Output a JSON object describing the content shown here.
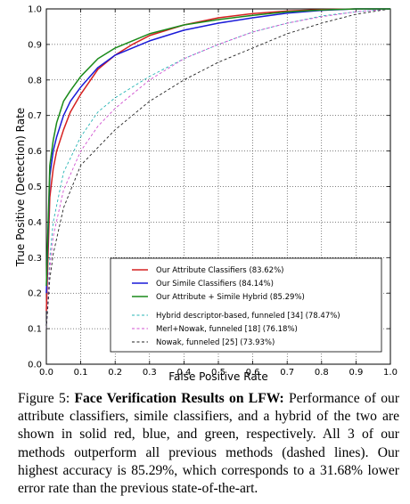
{
  "chart_data": {
    "type": "line",
    "xlabel": "False Positive Rate",
    "ylabel": "True Positive (Detection) Rate",
    "xlim": [
      0.0,
      1.0
    ],
    "ylim": [
      0.0,
      1.0
    ],
    "x_ticks": [
      "0.0",
      "0.1",
      "0.2",
      "0.3",
      "0.4",
      "0.5",
      "0.6",
      "0.7",
      "0.8",
      "0.9",
      "1.0"
    ],
    "y_ticks": [
      "0.0",
      "0.1",
      "0.2",
      "0.3",
      "0.4",
      "0.5",
      "0.6",
      "0.7",
      "0.8",
      "0.9",
      "1.0"
    ],
    "grid": true,
    "legend_position": "lower-right",
    "series": [
      {
        "name": "Our Attribute Classifiers (83.62%)",
        "color": "#d62020",
        "dash": "solid",
        "x": [
          0,
          0.01,
          0.02,
          0.03,
          0.05,
          0.07,
          0.1,
          0.15,
          0.2,
          0.25,
          0.3,
          0.4,
          0.5,
          0.6,
          0.7,
          0.8,
          0.9,
          1.0
        ],
        "y": [
          0.15,
          0.47,
          0.55,
          0.6,
          0.66,
          0.71,
          0.76,
          0.83,
          0.87,
          0.9,
          0.925,
          0.955,
          0.975,
          0.987,
          0.994,
          0.998,
          1.0,
          1.0
        ]
      },
      {
        "name": "Our Simile Classifiers (84.14%)",
        "color": "#1a1ad8",
        "dash": "solid",
        "x": [
          0,
          0.01,
          0.02,
          0.03,
          0.05,
          0.07,
          0.1,
          0.15,
          0.2,
          0.25,
          0.3,
          0.4,
          0.5,
          0.6,
          0.7,
          0.8,
          0.9,
          1.0
        ],
        "y": [
          0.2,
          0.53,
          0.6,
          0.64,
          0.7,
          0.74,
          0.78,
          0.835,
          0.87,
          0.89,
          0.91,
          0.94,
          0.96,
          0.975,
          0.988,
          0.996,
          1.0,
          1.0
        ]
      },
      {
        "name": "Our Attribute + Simile Hybrid (85.29%)",
        "color": "#1a8a1a",
        "dash": "solid",
        "x": [
          0,
          0.01,
          0.02,
          0.03,
          0.05,
          0.07,
          0.1,
          0.15,
          0.2,
          0.25,
          0.3,
          0.4,
          0.5,
          0.6,
          0.7,
          0.8,
          0.9,
          1.0
        ],
        "y": [
          0.22,
          0.56,
          0.63,
          0.68,
          0.74,
          0.77,
          0.81,
          0.86,
          0.89,
          0.91,
          0.93,
          0.955,
          0.97,
          0.982,
          0.992,
          0.997,
          1.0,
          1.0
        ]
      },
      {
        "name": "Hybrid descriptor-based, funneled [34] (78.47%)",
        "color": "#27b5b5",
        "dash": "dashed",
        "x": [
          0,
          0.01,
          0.02,
          0.05,
          0.1,
          0.15,
          0.2,
          0.25,
          0.3,
          0.4,
          0.5,
          0.6,
          0.7,
          0.8,
          0.9,
          1.0
        ],
        "y": [
          0.1,
          0.3,
          0.4,
          0.54,
          0.64,
          0.71,
          0.75,
          0.78,
          0.81,
          0.86,
          0.9,
          0.935,
          0.96,
          0.98,
          0.992,
          1.0
        ]
      },
      {
        "name": "Merl+Nowak, funneled [18] (76.18%)",
        "color": "#d050d0",
        "dash": "dashed",
        "x": [
          0,
          0.01,
          0.02,
          0.05,
          0.1,
          0.15,
          0.2,
          0.3,
          0.4,
          0.5,
          0.6,
          0.7,
          0.8,
          0.9,
          1.0
        ],
        "y": [
          0.1,
          0.27,
          0.36,
          0.49,
          0.6,
          0.67,
          0.72,
          0.8,
          0.86,
          0.9,
          0.935,
          0.96,
          0.978,
          0.992,
          1.0
        ]
      },
      {
        "name": "Nowak, funneled [25] (73.93%)",
        "color": "#222222",
        "dash": "dashed",
        "x": [
          0,
          0.01,
          0.02,
          0.05,
          0.1,
          0.15,
          0.2,
          0.25,
          0.3,
          0.4,
          0.5,
          0.6,
          0.7,
          0.8,
          0.9,
          1.0
        ],
        "y": [
          0.1,
          0.24,
          0.31,
          0.44,
          0.56,
          0.61,
          0.66,
          0.7,
          0.74,
          0.8,
          0.85,
          0.89,
          0.93,
          0.96,
          0.985,
          1.0
        ]
      }
    ]
  },
  "caption": {
    "label": "Figure 5:",
    "bold_title": "Face Verification Results on LFW:",
    "text": "Performance of our attribute classifiers, simile classifiers, and a hybrid of the two are shown in solid red, blue, and green, respectively. All 3 of our methods outperform all previous methods (dashed lines). Our highest accuracy is 85.29%, which corresponds to a 31.68% lower error rate than the previous state-of-the-art."
  }
}
